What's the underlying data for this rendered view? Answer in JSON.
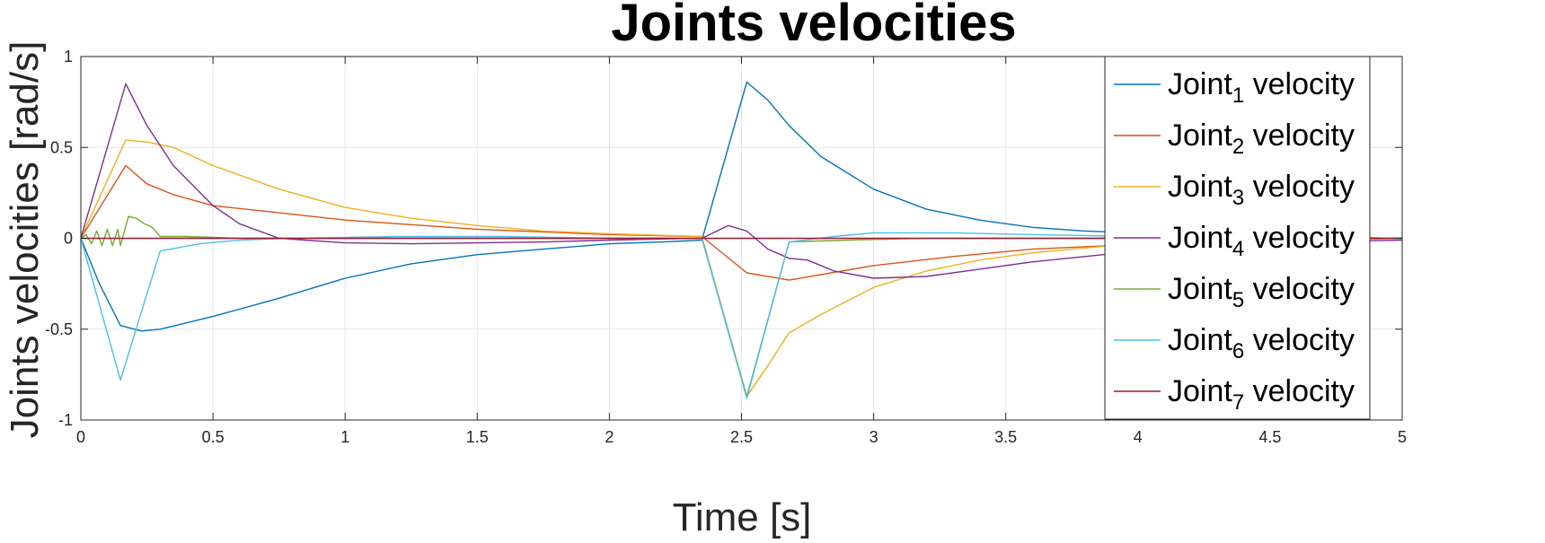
{
  "chart_data": {
    "type": "line",
    "title": "Joints velocities",
    "xlabel": "Time [s]",
    "ylabel": "Joints velocities [rad/s]",
    "xlim": [
      0,
      5
    ],
    "ylim": [
      -1,
      1
    ],
    "xticks": [
      0,
      0.5,
      1,
      1.5,
      2,
      2.5,
      3,
      3.5,
      4,
      4.5,
      5
    ],
    "xtick_labels": [
      "0",
      "0.5",
      "1",
      "1.5",
      "2",
      "2.5",
      "3",
      "3.5",
      "4",
      "4.5",
      "5"
    ],
    "yticks": [
      -1,
      -0.5,
      0,
      0.5,
      1
    ],
    "ytick_labels": [
      "-1",
      "-0.5",
      "0",
      "0.5",
      "1"
    ],
    "grid": true,
    "legend_position": "top-right",
    "series": [
      {
        "name": "Joint",
        "subscript": "1",
        "suffix": " velocity",
        "color": "#0072BD",
        "points": [
          [
            0,
            0
          ],
          [
            0.07,
            -0.25
          ],
          [
            0.15,
            -0.48
          ],
          [
            0.23,
            -0.51
          ],
          [
            0.3,
            -0.5
          ],
          [
            0.5,
            -0.43
          ],
          [
            0.75,
            -0.33
          ],
          [
            1,
            -0.22
          ],
          [
            1.25,
            -0.14
          ],
          [
            1.5,
            -0.09
          ],
          [
            1.75,
            -0.06
          ],
          [
            2,
            -0.03
          ],
          [
            2.2,
            -0.02
          ],
          [
            2.35,
            -0.01
          ],
          [
            2.52,
            0.86
          ],
          [
            2.6,
            0.76
          ],
          [
            2.68,
            0.62
          ],
          [
            2.8,
            0.45
          ],
          [
            3,
            0.27
          ],
          [
            3.2,
            0.16
          ],
          [
            3.4,
            0.1
          ],
          [
            3.6,
            0.06
          ],
          [
            3.8,
            0.04
          ],
          [
            4,
            0.03
          ],
          [
            4.5,
            0.01
          ],
          [
            5,
            0
          ]
        ]
      },
      {
        "name": "Joint",
        "subscript": "2",
        "suffix": " velocity",
        "color": "#D95319",
        "points": [
          [
            0,
            0
          ],
          [
            0.17,
            0.4
          ],
          [
            0.25,
            0.3
          ],
          [
            0.35,
            0.24
          ],
          [
            0.5,
            0.18
          ],
          [
            0.75,
            0.14
          ],
          [
            1,
            0.1
          ],
          [
            1.25,
            0.075
          ],
          [
            1.5,
            0.05
          ],
          [
            1.75,
            0.035
          ],
          [
            2,
            0.02
          ],
          [
            2.35,
            0.01
          ],
          [
            2.52,
            -0.19
          ],
          [
            2.68,
            -0.23
          ],
          [
            2.8,
            -0.2
          ],
          [
            3,
            -0.15
          ],
          [
            3.3,
            -0.1
          ],
          [
            3.6,
            -0.06
          ],
          [
            3.9,
            -0.04
          ],
          [
            4.2,
            -0.02
          ],
          [
            4.6,
            -0.01
          ],
          [
            5,
            0
          ]
        ]
      },
      {
        "name": "Joint",
        "subscript": "3",
        "suffix": " velocity",
        "color": "#EDB120",
        "points": [
          [
            0,
            0
          ],
          [
            0.17,
            0.54
          ],
          [
            0.25,
            0.53
          ],
          [
            0.35,
            0.5
          ],
          [
            0.5,
            0.4
          ],
          [
            0.75,
            0.27
          ],
          [
            1,
            0.17
          ],
          [
            1.25,
            0.11
          ],
          [
            1.5,
            0.07
          ],
          [
            1.75,
            0.04
          ],
          [
            2,
            0.025
          ],
          [
            2.35,
            0.01
          ],
          [
            2.52,
            -0.87
          ],
          [
            2.6,
            -0.7
          ],
          [
            2.68,
            -0.52
          ],
          [
            2.8,
            -0.42
          ],
          [
            3,
            -0.27
          ],
          [
            3.2,
            -0.18
          ],
          [
            3.4,
            -0.12
          ],
          [
            3.6,
            -0.08
          ],
          [
            3.9,
            -0.04
          ],
          [
            4.2,
            -0.02
          ],
          [
            4.6,
            -0.01
          ],
          [
            5,
            0
          ]
        ]
      },
      {
        "name": "Joint",
        "subscript": "4",
        "suffix": " velocity",
        "color": "#7E2F8E",
        "points": [
          [
            0,
            0
          ],
          [
            0.17,
            0.85
          ],
          [
            0.25,
            0.62
          ],
          [
            0.35,
            0.4
          ],
          [
            0.5,
            0.18
          ],
          [
            0.6,
            0.08
          ],
          [
            0.75,
            0.0
          ],
          [
            1,
            -0.025
          ],
          [
            1.25,
            -0.03
          ],
          [
            1.5,
            -0.025
          ],
          [
            1.75,
            -0.02
          ],
          [
            2,
            -0.01
          ],
          [
            2.35,
            0
          ],
          [
            2.45,
            0.07
          ],
          [
            2.52,
            0.04
          ],
          [
            2.6,
            -0.06
          ],
          [
            2.68,
            -0.11
          ],
          [
            2.75,
            -0.12
          ],
          [
            2.85,
            -0.18
          ],
          [
            3,
            -0.22
          ],
          [
            3.2,
            -0.21
          ],
          [
            3.4,
            -0.17
          ],
          [
            3.6,
            -0.13
          ],
          [
            3.8,
            -0.1
          ],
          [
            4,
            -0.07
          ],
          [
            4.3,
            -0.04
          ],
          [
            4.6,
            -0.02
          ],
          [
            5,
            -0.01
          ]
        ]
      },
      {
        "name": "Joint",
        "subscript": "5",
        "suffix": " velocity",
        "color": "#77AC30",
        "points": [
          [
            0,
            0
          ],
          [
            0.02,
            0.02
          ],
          [
            0.04,
            -0.03
          ],
          [
            0.06,
            0.04
          ],
          [
            0.08,
            -0.04
          ],
          [
            0.1,
            0.05
          ],
          [
            0.12,
            -0.04
          ],
          [
            0.14,
            0.05
          ],
          [
            0.15,
            -0.04
          ],
          [
            0.18,
            0.12
          ],
          [
            0.21,
            0.11
          ],
          [
            0.24,
            0.08
          ],
          [
            0.27,
            0.06
          ],
          [
            0.3,
            0.01
          ],
          [
            0.4,
            0.01
          ],
          [
            0.6,
            0
          ],
          [
            1,
            0
          ],
          [
            2,
            0
          ],
          [
            2.35,
            0
          ],
          [
            2.52,
            -0.87
          ],
          [
            2.68,
            -0.02
          ],
          [
            2.9,
            -0.01
          ],
          [
            3.2,
            0
          ],
          [
            5,
            0
          ]
        ]
      },
      {
        "name": "Joint",
        "subscript": "6",
        "suffix": " velocity",
        "color": "#4DBEEE",
        "points": [
          [
            0,
            0
          ],
          [
            0.15,
            -0.78
          ],
          [
            0.3,
            -0.07
          ],
          [
            0.45,
            -0.03
          ],
          [
            0.6,
            -0.01
          ],
          [
            0.8,
            0
          ],
          [
            1.2,
            0.01
          ],
          [
            1.6,
            0.01
          ],
          [
            2,
            0
          ],
          [
            2.35,
            0
          ],
          [
            2.52,
            -0.88
          ],
          [
            2.68,
            -0.02
          ],
          [
            2.85,
            0.01
          ],
          [
            3,
            0.03
          ],
          [
            3.3,
            0.03
          ],
          [
            3.6,
            0.02
          ],
          [
            4,
            0.01
          ],
          [
            4.5,
            0.01
          ],
          [
            5,
            0
          ]
        ]
      },
      {
        "name": "Joint",
        "subscript": "7",
        "suffix": " velocity",
        "color": "#A2142F",
        "points": [
          [
            0,
            0
          ],
          [
            5,
            0
          ]
        ]
      }
    ]
  }
}
